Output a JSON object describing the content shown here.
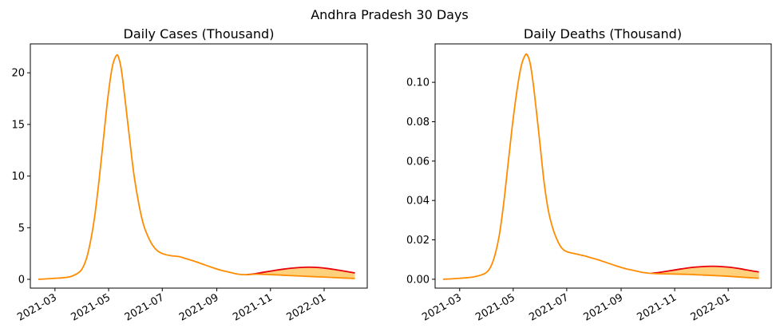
{
  "figure": {
    "title": "Andhra Pradesh 30 Days"
  },
  "colors": {
    "projection_line": "#e8000b",
    "actual_line": "#ff8c00",
    "band_fill": "#ffc966",
    "axis": "#000000"
  },
  "chart_data": [
    {
      "type": "line",
      "title": "Daily Cases (Thousand)",
      "xlabel": "",
      "ylabel": "",
      "xlim": [
        "2021-02-01",
        "2022-02-19"
      ],
      "ylim": [
        -0.85,
        22.8
      ],
      "x_ticks": [
        "2021-03-01",
        "2021-05-01",
        "2021-07-01",
        "2021-09-01",
        "2021-11-01",
        "2022-01-01"
      ],
      "x_tick_labels": [
        "2021-03",
        "2021-05",
        "2021-07",
        "2021-09",
        "2021-11",
        "2022-01"
      ],
      "y_ticks": [
        0,
        5,
        10,
        15,
        20
      ],
      "y_tick_labels": [
        "0",
        "5",
        "10",
        "15",
        "20"
      ],
      "grid": false,
      "series": [
        {
          "role": "actual",
          "x": [
            "2021-02-10",
            "2021-02-20",
            "2021-03-01",
            "2021-03-10",
            "2021-03-20",
            "2021-03-30",
            "2021-04-05",
            "2021-04-10",
            "2021-04-15",
            "2021-04-20",
            "2021-04-25",
            "2021-04-30",
            "2021-05-05",
            "2021-05-10",
            "2021-05-13",
            "2021-05-16",
            "2021-05-20",
            "2021-05-25",
            "2021-05-30",
            "2021-06-05",
            "2021-06-10",
            "2021-06-15",
            "2021-06-20",
            "2021-06-25",
            "2021-07-01",
            "2021-07-10",
            "2021-07-20",
            "2021-07-28",
            "2021-08-05",
            "2021-08-15",
            "2021-08-25",
            "2021-09-05",
            "2021-09-15",
            "2021-09-25",
            "2021-10-05",
            "2021-10-15",
            "2021-10-25",
            "2021-11-05",
            "2021-11-15",
            "2021-11-25",
            "2021-12-05",
            "2021-12-15",
            "2021-12-25",
            "2022-01-05",
            "2022-01-15",
            "2022-01-25",
            "2022-02-05"
          ],
          "values": [
            0,
            0.05,
            0.1,
            0.15,
            0.3,
            0.8,
            1.8,
            3.5,
            6.0,
            9.5,
            13.5,
            17.5,
            20.5,
            21.7,
            21.3,
            20.0,
            17.2,
            13.5,
            10.0,
            7.0,
            5.2,
            4.1,
            3.3,
            2.8,
            2.5,
            2.3,
            2.2,
            2.0,
            1.8,
            1.5,
            1.2,
            0.9,
            0.7,
            0.5,
            0.45,
            0.5,
            0.48,
            0.44,
            0.4,
            0.36,
            0.32,
            0.28,
            0.24,
            0.2,
            0.16,
            0.12,
            0.08
          ]
        },
        {
          "role": "projection",
          "x": [
            "2021-10-05",
            "2021-10-15",
            "2021-10-25",
            "2021-11-05",
            "2021-11-15",
            "2021-11-25",
            "2021-12-05",
            "2021-12-15",
            "2021-12-25",
            "2022-01-05",
            "2022-01-15",
            "2022-01-25",
            "2022-02-05"
          ],
          "values": [
            0.45,
            0.55,
            0.7,
            0.85,
            0.98,
            1.08,
            1.15,
            1.18,
            1.15,
            1.05,
            0.92,
            0.78,
            0.62
          ]
        }
      ]
    },
    {
      "type": "line",
      "title": "Daily Deaths (Thousand)",
      "xlabel": "",
      "ylabel": "",
      "xlim": [
        "2021-02-01",
        "2022-02-19"
      ],
      "ylim": [
        -0.0045,
        0.1195
      ],
      "x_ticks": [
        "2021-03-01",
        "2021-05-01",
        "2021-07-01",
        "2021-09-01",
        "2021-11-01",
        "2022-01-01"
      ],
      "x_tick_labels": [
        "2021-03",
        "2021-05",
        "2021-07",
        "2021-09",
        "2021-11",
        "2022-01"
      ],
      "y_ticks": [
        0,
        0.02,
        0.04,
        0.06,
        0.08,
        0.1
      ],
      "y_tick_labels": [
        "0.00",
        "0.02",
        "0.04",
        "0.06",
        "0.08",
        "0.10"
      ],
      "grid": false,
      "series": [
        {
          "role": "actual",
          "x": [
            "2021-02-10",
            "2021-02-20",
            "2021-03-01",
            "2021-03-10",
            "2021-03-20",
            "2021-03-30",
            "2021-04-05",
            "2021-04-10",
            "2021-04-15",
            "2021-04-20",
            "2021-04-25",
            "2021-04-30",
            "2021-05-05",
            "2021-05-10",
            "2021-05-15",
            "2021-05-18",
            "2021-05-21",
            "2021-05-25",
            "2021-05-30",
            "2021-06-05",
            "2021-06-10",
            "2021-06-15",
            "2021-06-20",
            "2021-06-25",
            "2021-07-01",
            "2021-07-10",
            "2021-07-20",
            "2021-07-28",
            "2021-08-05",
            "2021-08-15",
            "2021-08-25",
            "2021-09-05",
            "2021-09-15",
            "2021-09-25",
            "2021-10-05",
            "2021-10-15",
            "2021-10-25",
            "2021-11-05",
            "2021-11-15",
            "2021-11-25",
            "2021-12-05",
            "2021-12-15",
            "2021-12-25",
            "2022-01-05",
            "2022-01-15",
            "2022-01-25",
            "2022-02-05"
          ],
          "values": [
            0,
            0.0002,
            0.0005,
            0.0008,
            0.0015,
            0.003,
            0.006,
            0.012,
            0.022,
            0.038,
            0.058,
            0.078,
            0.095,
            0.108,
            0.114,
            0.113,
            0.108,
            0.095,
            0.075,
            0.05,
            0.035,
            0.026,
            0.02,
            0.016,
            0.014,
            0.013,
            0.012,
            0.011,
            0.01,
            0.0085,
            0.007,
            0.0055,
            0.0045,
            0.0035,
            0.003,
            0.0028,
            0.0027,
            0.0026,
            0.0025,
            0.0023,
            0.0021,
            0.0019,
            0.0017,
            0.0014,
            0.0011,
            0.0008,
            0.0005
          ]
        },
        {
          "role": "projection",
          "x": [
            "2021-10-05",
            "2021-10-15",
            "2021-10-25",
            "2021-11-05",
            "2021-11-15",
            "2021-11-25",
            "2021-12-05",
            "2021-12-15",
            "2021-12-25",
            "2022-01-05",
            "2022-01-15",
            "2022-01-25",
            "2022-02-05"
          ],
          "values": [
            0.003,
            0.0035,
            0.0042,
            0.005,
            0.0057,
            0.0062,
            0.0065,
            0.0066,
            0.0064,
            0.006,
            0.0053,
            0.0045,
            0.0037
          ]
        }
      ]
    }
  ]
}
